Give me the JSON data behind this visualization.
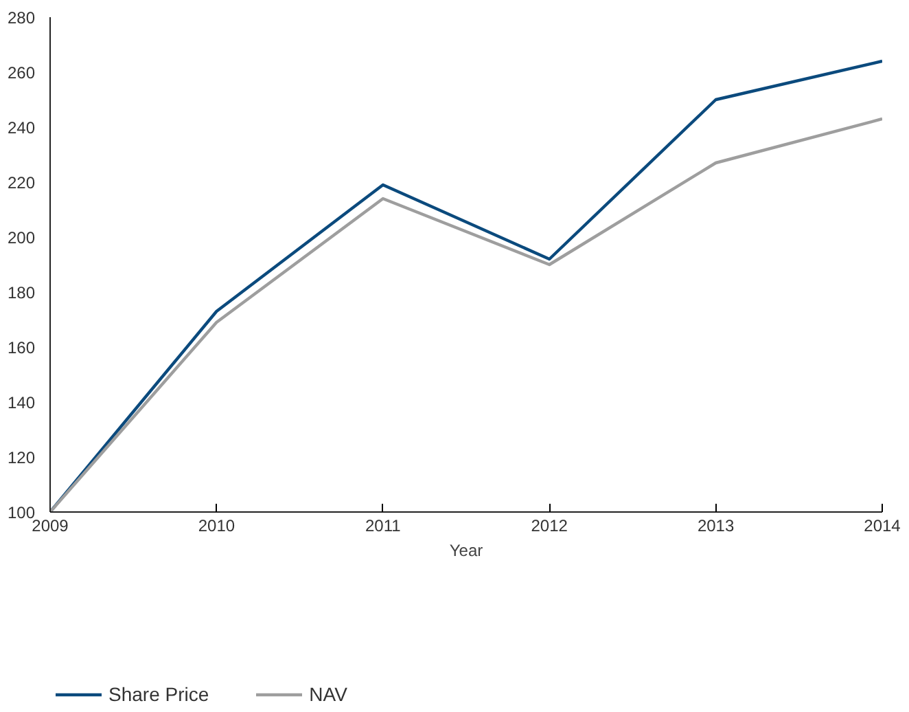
{
  "chart_data": {
    "type": "line",
    "xlabel": "Year",
    "x": [
      2009,
      2010,
      2011,
      2012,
      2013,
      2014
    ],
    "xlim": [
      2009,
      2014
    ],
    "xticks": [
      2009,
      2010,
      2011,
      2012,
      2013,
      2014
    ],
    "ylim": [
      100,
      280
    ],
    "yticks": [
      100,
      120,
      140,
      160,
      180,
      200,
      220,
      240,
      260,
      280
    ],
    "series": [
      {
        "name": "Share Price",
        "color": "#0b4a7d",
        "values": [
          100,
          173,
          219,
          192,
          250,
          264
        ]
      },
      {
        "name": "NAV",
        "color": "#9e9e9e",
        "values": [
          100,
          169,
          214,
          190,
          227,
          243
        ]
      }
    ],
    "grid": false,
    "legend": "bottom",
    "marker": "none",
    "line_style": "solid"
  }
}
